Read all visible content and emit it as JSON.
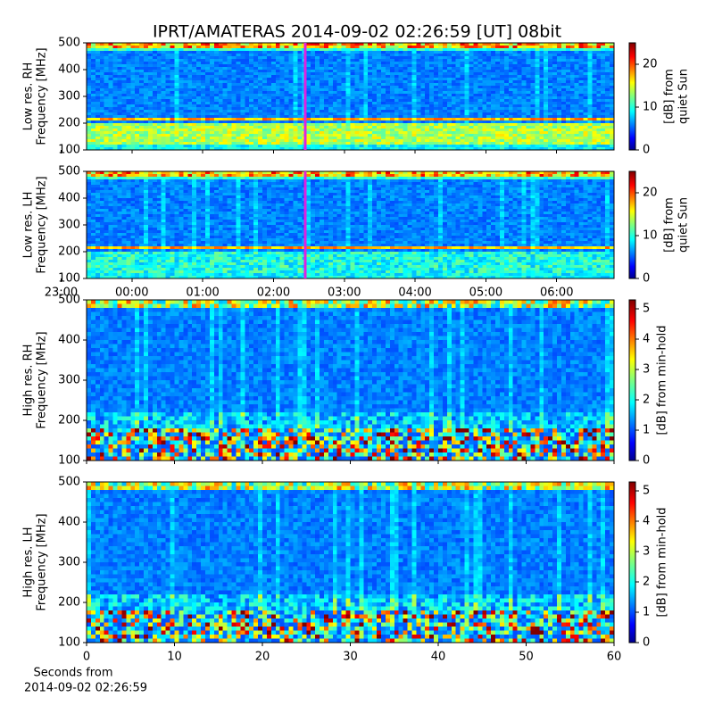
{
  "title": "IPRT/AMATERAS 2014-09-02 02:26:59 [UT]   08bit",
  "chart_data": [
    {
      "type": "heatmap",
      "ylabel": [
        "Low res. RH",
        "Frequency [MHz]"
      ],
      "ylim": [
        100,
        500
      ],
      "yticks": [
        100,
        200,
        300,
        400,
        500
      ],
      "xlim": [
        -0.64,
        6.81
      ],
      "xticks": [
        {
          "value": -1,
          "label": "23:00"
        },
        {
          "value": 0,
          "label": "00:00"
        },
        {
          "value": 1,
          "label": "01:00"
        },
        {
          "value": 2,
          "label": "02:00"
        },
        {
          "value": 3,
          "label": "03:00"
        },
        {
          "value": 4,
          "label": "04:00"
        },
        {
          "value": 5,
          "label": "05:00"
        },
        {
          "value": 6,
          "label": "06:00"
        }
      ],
      "show_xtick_labels": false,
      "marker": {
        "x": 2.45,
        "color": "#e020e0"
      },
      "colorbar": {
        "label": [
          "[dB] from",
          "quiet Sun"
        ],
        "lim": [
          0,
          25
        ],
        "ticks": [
          0,
          10,
          20
        ]
      }
    },
    {
      "type": "heatmap",
      "ylabel": [
        "Low res. LH",
        "Frequency [MHz]"
      ],
      "ylim": [
        100,
        500
      ],
      "yticks": [
        100,
        200,
        300,
        400,
        500
      ],
      "xlim": [
        -0.64,
        6.81
      ],
      "xticks": [
        {
          "value": -1,
          "label": "23:00"
        },
        {
          "value": 0,
          "label": "00:00"
        },
        {
          "value": 1,
          "label": "01:00"
        },
        {
          "value": 2,
          "label": "02:00"
        },
        {
          "value": 3,
          "label": "03:00"
        },
        {
          "value": 4,
          "label": "04:00"
        },
        {
          "value": 5,
          "label": "05:00"
        },
        {
          "value": 6,
          "label": "06:00"
        }
      ],
      "show_xtick_labels": true,
      "marker": {
        "x": 2.45,
        "color": "#e020e0"
      },
      "colorbar": {
        "label": [
          "[dB] from",
          "quiet Sun"
        ],
        "lim": [
          0,
          25
        ],
        "ticks": [
          0,
          10,
          20
        ]
      }
    },
    {
      "type": "heatmap",
      "ylabel": [
        "High res. RH",
        "Frequency [MHz]"
      ],
      "ylim": [
        100,
        500
      ],
      "yticks": [
        100,
        200,
        300,
        400,
        500
      ],
      "xlim": [
        0,
        60
      ],
      "xticks": [
        0,
        10,
        20,
        30,
        40,
        50,
        60
      ],
      "show_xtick_labels": false,
      "colorbar": {
        "label": [
          "[dB] from min-hold"
        ],
        "lim": [
          0,
          5.3
        ],
        "ticks": [
          0,
          1,
          2,
          3,
          4,
          5
        ]
      }
    },
    {
      "type": "heatmap",
      "ylabel": [
        "High res. LH",
        "Frequency [MHz]"
      ],
      "ylim": [
        100,
        500
      ],
      "yticks": [
        100,
        200,
        300,
        400,
        500
      ],
      "xlim": [
        0,
        60
      ],
      "xticks": [
        0,
        10,
        20,
        30,
        40,
        50,
        60
      ],
      "show_xtick_labels": true,
      "xlabel": [
        "Seconds from",
        "2014-09-02 02:26:59"
      ],
      "colorbar": {
        "label": [
          "[dB] from min-hold"
        ],
        "lim": [
          0,
          5.3
        ],
        "ticks": [
          0,
          1,
          2,
          3,
          4,
          5
        ]
      }
    }
  ]
}
